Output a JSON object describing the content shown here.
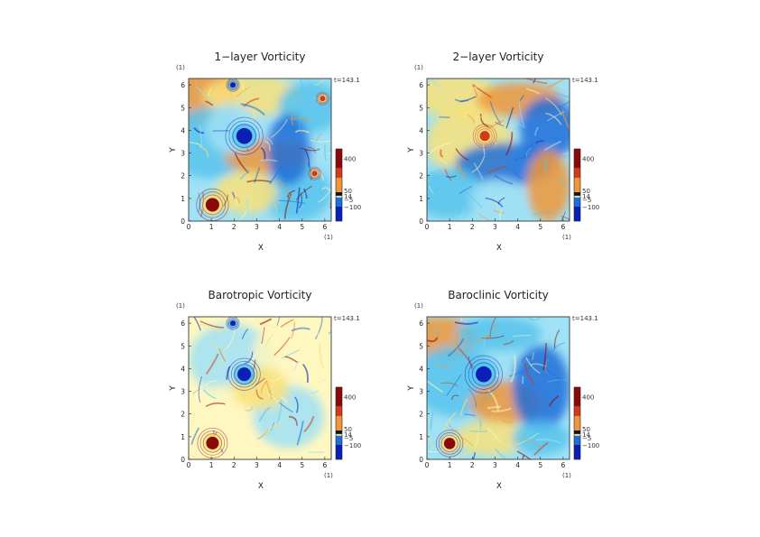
{
  "chart_data": [
    {
      "type": "heatmap",
      "title": "1−layer Vorticity",
      "xlabel": "X",
      "ylabel": "Y",
      "x_unit": "(1)",
      "y_unit": "(1)",
      "time_label": "t=143.1",
      "xlim": [
        0,
        6.283
      ],
      "ylim": [
        0,
        6.283
      ],
      "xticks": [
        "0",
        "1",
        "2",
        "3",
        "4",
        "5",
        "6"
      ],
      "yticks": [
        "0",
        "1",
        "2",
        "3",
        "4",
        "5",
        "6"
      ],
      "colorbar": {
        "labels": [
          "400",
          "50",
          "14",
          "−5",
          "−100"
        ],
        "values": [
          400,
          50,
          14,
          -5,
          -100
        ],
        "range": [
          -250,
          500
        ]
      },
      "features": [
        {
          "x": 2.45,
          "y": 3.75,
          "value": -300,
          "r": 0.35
        },
        {
          "x": 1.95,
          "y": 6.0,
          "value": -250,
          "r": 0.12
        },
        {
          "x": 1.05,
          "y": 0.72,
          "value": 350,
          "r": 0.3
        },
        {
          "x": 5.55,
          "y": 2.1,
          "value": 200,
          "r": 0.12
        },
        {
          "x": 5.9,
          "y": 5.4,
          "value": 250,
          "r": 0.12
        }
      ]
    },
    {
      "type": "heatmap",
      "title": "2−layer Vorticity",
      "xlabel": "X",
      "ylabel": "Y",
      "x_unit": "(1)",
      "y_unit": "(1)",
      "time_label": "t=143.1",
      "xlim": [
        0,
        6.283
      ],
      "ylim": [
        0,
        6.283
      ],
      "xticks": [
        "0",
        "1",
        "2",
        "3",
        "4",
        "5",
        "6"
      ],
      "yticks": [
        "0",
        "1",
        "2",
        "3",
        "4",
        "5",
        "6"
      ],
      "colorbar": {
        "labels": [
          "400",
          "50",
          "14",
          "−5",
          "−100"
        ],
        "values": [
          400,
          50,
          14,
          -5,
          -100
        ],
        "range": [
          -250,
          500
        ]
      },
      "features": [
        {
          "x": 2.55,
          "y": 3.75,
          "value": 250,
          "r": 0.22
        }
      ]
    },
    {
      "type": "heatmap",
      "title": "Barotropic Vorticity",
      "xlabel": "X",
      "ylabel": "Y",
      "x_unit": "(1)",
      "y_unit": "(1)",
      "time_label": "t=143.1",
      "xlim": [
        0,
        6.283
      ],
      "ylim": [
        0,
        6.283
      ],
      "xticks": [
        "0",
        "1",
        "2",
        "3",
        "4",
        "5",
        "6"
      ],
      "yticks": [
        "0",
        "1",
        "2",
        "3",
        "4",
        "5",
        "6"
      ],
      "colorbar": {
        "labels": [
          "400",
          "50",
          "14",
          "−5",
          "−100"
        ],
        "values": [
          400,
          50,
          14,
          -5,
          -100
        ],
        "range": [
          -250,
          500
        ]
      },
      "features": [
        {
          "x": 2.45,
          "y": 3.75,
          "value": -300,
          "r": 0.3
        },
        {
          "x": 1.95,
          "y": 6.0,
          "value": -250,
          "r": 0.12
        },
        {
          "x": 1.05,
          "y": 0.72,
          "value": 350,
          "r": 0.28
        }
      ]
    },
    {
      "type": "heatmap",
      "title": "Baroclinic Vorticity",
      "xlabel": "X",
      "ylabel": "Y",
      "x_unit": "(1)",
      "y_unit": "(1)",
      "time_label": "t=143.1",
      "xlim": [
        0,
        6.283
      ],
      "ylim": [
        0,
        6.283
      ],
      "xticks": [
        "0",
        "1",
        "2",
        "3",
        "4",
        "5",
        "6"
      ],
      "yticks": [
        "0",
        "1",
        "2",
        "3",
        "4",
        "5",
        "6"
      ],
      "colorbar": {
        "labels": [
          "400",
          "50",
          "14",
          "−5",
          "−100"
        ],
        "values": [
          400,
          50,
          14,
          -5,
          -100
        ],
        "range": [
          -250,
          500
        ]
      },
      "features": [
        {
          "x": 2.5,
          "y": 3.75,
          "value": -300,
          "r": 0.35
        },
        {
          "x": 1.0,
          "y": 0.7,
          "value": 350,
          "r": 0.25
        }
      ]
    }
  ],
  "colors": {
    "deep_blue": "#0a1fb5",
    "blue": "#1e6fd9",
    "light_blue": "#58c3ec",
    "cyan": "#9fe1f5",
    "pale": "#fff7c0",
    "yellow": "#f9e27a",
    "orange": "#f0963a",
    "red": "#d23a1c",
    "dark_red": "#8a0a0a"
  }
}
